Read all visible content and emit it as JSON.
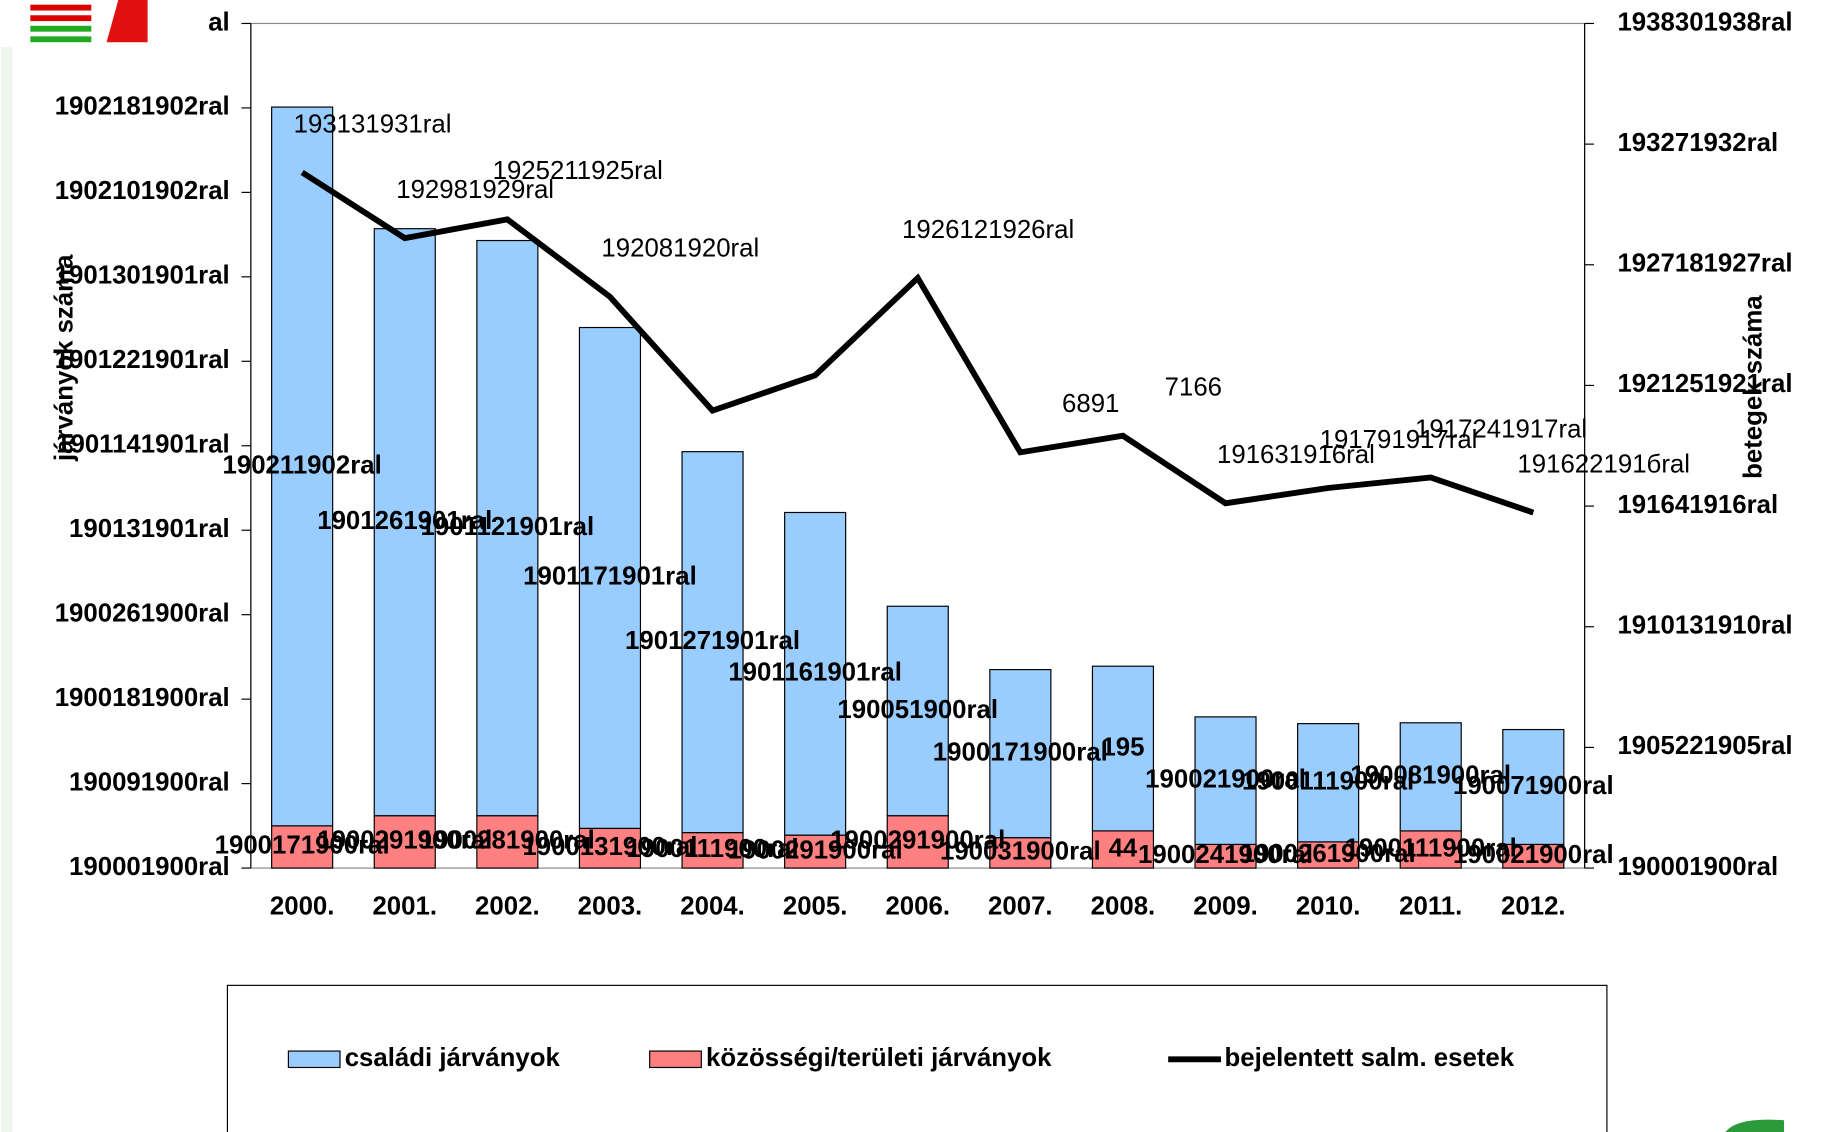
{
  "chart_data": {
    "type": "bar",
    "stacked": true,
    "ylabel": "járványok száma",
    "y2label": "betegek száma",
    "categories": [
      "2000.",
      "2001.",
      "2002.",
      "2003.",
      "2004.",
      "2005.",
      "2006.",
      "2007.",
      "2008.",
      "2009.",
      "2010.",
      "2011.",
      "2012."
    ],
    "ylim": [
      0,
      1000
    ],
    "yticks": [
      {
        "value": 0,
        "label": "190001900ral"
      },
      {
        "value": 100,
        "label": "190091900ral"
      },
      {
        "value": 200,
        "label": "1900181900ral"
      },
      {
        "value": 300,
        "label": "1900261900ral"
      },
      {
        "value": 400,
        "label": "190131901ral"
      },
      {
        "value": 500,
        "label": "1901141901ral"
      },
      {
        "value": 600,
        "label": "1901221901ral"
      },
      {
        "value": 700,
        "label": "1901301901ral"
      },
      {
        "value": 800,
        "label": "1902101902ral"
      },
      {
        "value": 900,
        "label": "1902181902ral"
      },
      {
        "value": 1000,
        "label": "al"
      }
    ],
    "y2lim": [
      0,
      14000
    ],
    "y2ticks": [
      {
        "value": 0,
        "label": "190001900ral"
      },
      {
        "value": 2000,
        "label": "1905221905ral"
      },
      {
        "value": 4000,
        "label": "1910131910ral"
      },
      {
        "value": 6000,
        "label": "191641916ral"
      },
      {
        "value": 8000,
        "label": "1921251921ral"
      },
      {
        "value": 10000,
        "label": "1927181927ral"
      },
      {
        "value": 12000,
        "label": "193271932ral"
      },
      {
        "value": 14000,
        "label": "1938301938ral"
      }
    ],
    "legend": "bottom",
    "series": [
      {
        "name": "közösségi/területi  járványok",
        "type": "bar",
        "color": "#ff8080",
        "values": [
          50,
          62,
          62,
          47,
          42,
          39,
          62,
          36,
          44,
          28,
          31,
          44,
          28
        ],
        "value_labels": [
          "1900171900ral",
          "1900291900ral",
          "1900281900ral",
          "1900131900ral",
          "1900111900ral",
          "1900291900ral",
          "1900291900ral",
          "190031900ral",
          "44",
          "1900241900ral",
          "1900261900ral",
          "1900111900ral",
          "190021900ral"
        ]
      },
      {
        "name": "családi járványok",
        "type": "bar",
        "color": "#99ccff",
        "values": [
          851,
          695,
          681,
          593,
          451,
          382,
          248,
          199,
          195,
          151,
          140,
          128,
          136
        ],
        "value_labels": [
          "190211902ral",
          "1901261901ral",
          "1901121901ral",
          "1901171901ral",
          "1901271901ral",
          "1901161901ral",
          "190051900ral",
          "1900171900ral",
          "195",
          "190021900ral",
          "1900111900ral",
          "190081900ral",
          "190071900ral"
        ]
      },
      {
        "name": "bejelentett salm. esetek",
        "type": "line",
        "axis": "y2",
        "color": "#000000",
        "values": [
          11531,
          10442,
          10753,
          9469,
          7583,
          8167,
          9781,
          6891,
          7166,
          6047,
          6300,
          6475,
          5892
        ],
        "value_labels": [
          "193131931ral",
          "192981929ral",
          "1925211925ral",
          "192081920ral",
          null,
          null,
          "1926121926ral",
          "6891",
          "7166",
          "191631916ral",
          "191791917ral",
          "1917241917ral",
          "191622191бral"
        ]
      }
    ]
  }
}
